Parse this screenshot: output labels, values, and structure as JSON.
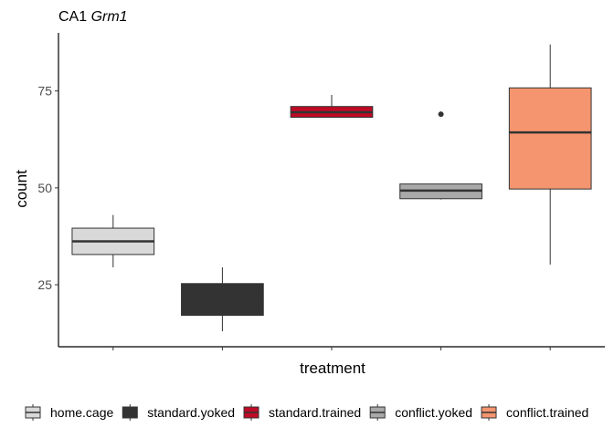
{
  "chart_data": {
    "type": "box",
    "title_prefix": "CA1 ",
    "title_gene": "Grm1",
    "xlabel": "treatment",
    "ylabel": "count",
    "ylim": [
      9,
      90
    ],
    "yticks": [
      25,
      50,
      75
    ],
    "grid": false,
    "legend_position": "bottom",
    "categories": [
      "home.cage",
      "standard.yoked",
      "standard.trained",
      "conflict.yoked",
      "conflict.trained"
    ],
    "boxes": [
      {
        "category": "home.cage",
        "color": "#d9d9d9",
        "whisker_low": 29.5,
        "q1": 32.8,
        "median": 36.2,
        "q3": 39.6,
        "whisker_high": 43.0,
        "outliers": []
      },
      {
        "category": "standard.yoked",
        "color": "#333333",
        "whisker_low": 13.0,
        "q1": 17.1,
        "median": 21.3,
        "q3": 25.3,
        "whisker_high": 29.5,
        "outliers": []
      },
      {
        "category": "standard.trained",
        "color": "#bf0a26",
        "whisker_low": 68.2,
        "q1": 68.2,
        "median": 69.5,
        "q3": 71.0,
        "whisker_high": 74.0,
        "outliers": []
      },
      {
        "category": "conflict.yoked",
        "color": "#a9a9a9",
        "whisker_low": 47.0,
        "q1": 47.2,
        "median": 49.3,
        "q3": 51.0,
        "whisker_high": 51.0,
        "outliers": [
          69.0
        ]
      },
      {
        "category": "conflict.trained",
        "color": "#f4956f",
        "whisker_low": 30.2,
        "q1": 49.7,
        "median": 64.3,
        "q3": 75.8,
        "whisker_high": 87.0,
        "outliers": []
      }
    ],
    "legend": [
      "home.cage",
      "standard.yoked",
      "standard.trained",
      "conflict.yoked",
      "conflict.trained"
    ]
  }
}
